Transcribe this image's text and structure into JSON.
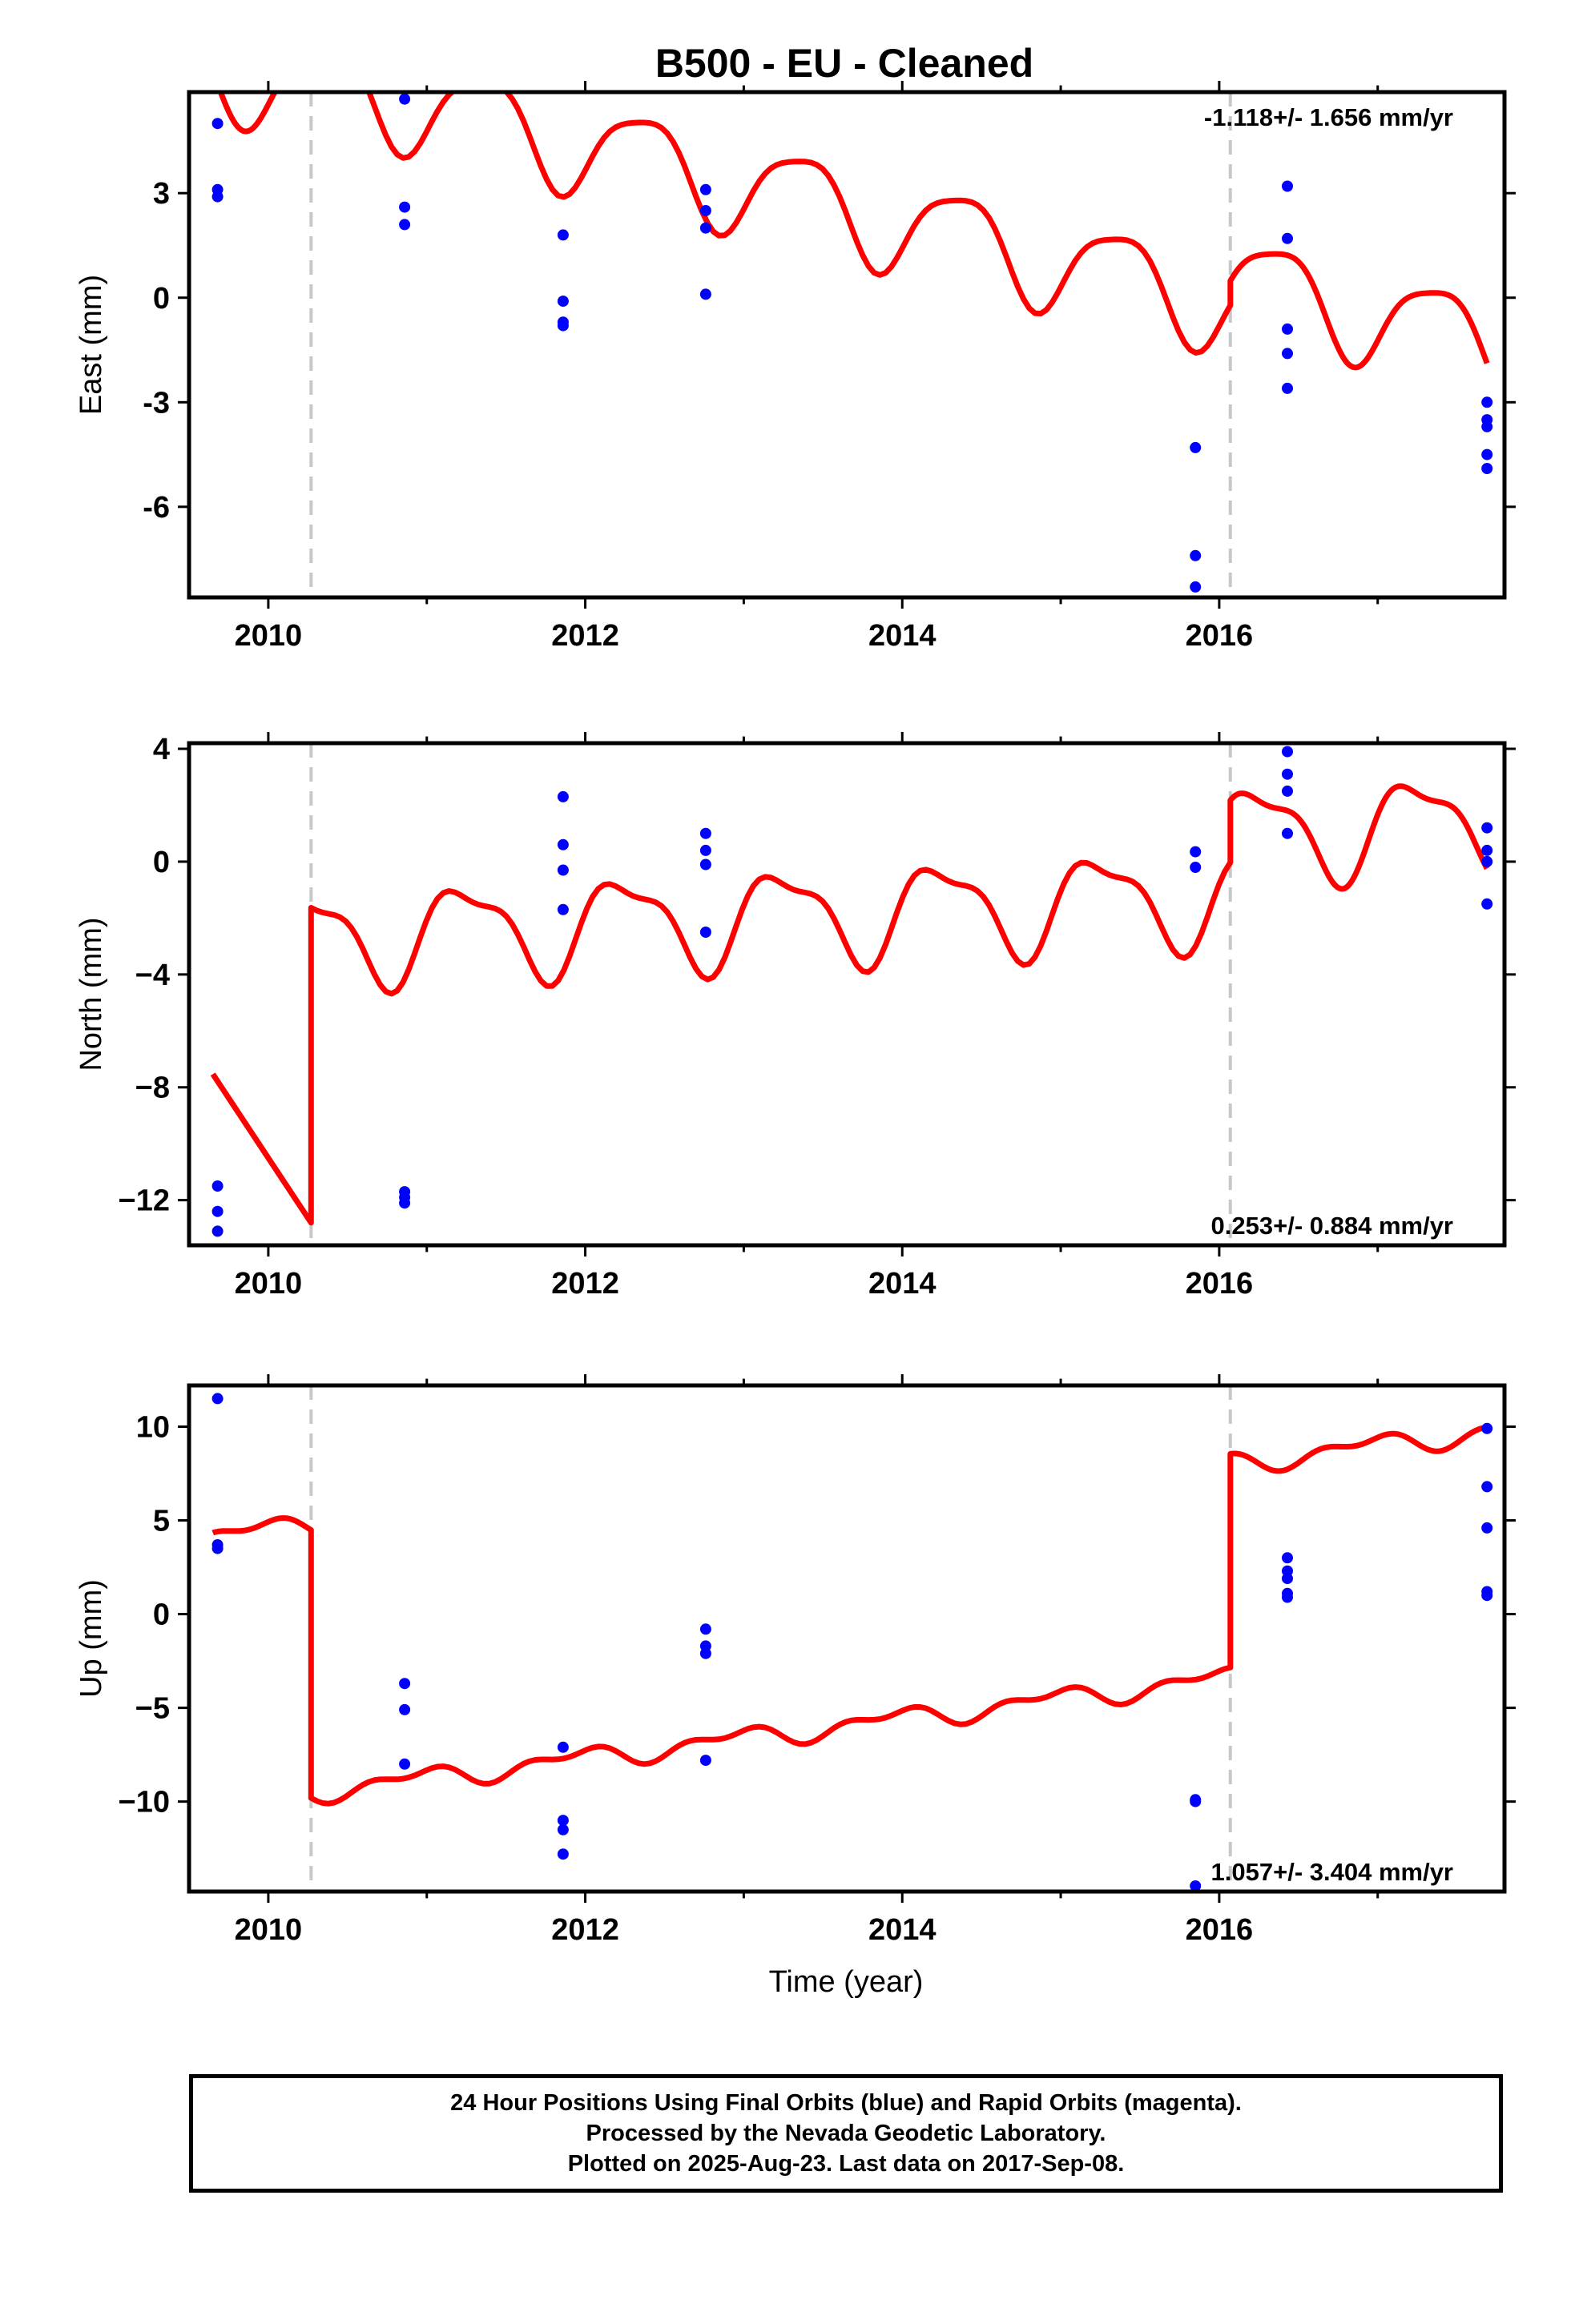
{
  "chart_data": {
    "title": "B500  - EU - Cleaned",
    "type": "scatter",
    "xlabel": "Time (year)",
    "xlim": [
      2009.5,
      2017.8
    ],
    "xticks": [
      2010,
      2012,
      2014,
      2016
    ],
    "equipment_changes": [
      2010.27,
      2016.07
    ],
    "colors": {
      "final_orbits": "#0000ff",
      "rapid_orbits": "#ff00ff",
      "model": "#ff0000",
      "breaks": "#c8c8c8"
    },
    "panels": [
      {
        "name": "east",
        "ylabel": "East (mm)",
        "ylim": [
          -8.6,
          5.9
        ],
        "yticks": [
          "3",
          "0",
          "-3",
          "-6"
        ],
        "yticks_values": [
          3,
          0,
          -3,
          -6
        ],
        "rate_text": "-1.118+/- 1.656 mm/yr",
        "rate_position": "top-right",
        "points": [
          {
            "x": 2009.68,
            "y": 5.0
          },
          {
            "x": 2009.68,
            "y": 3.1
          },
          {
            "x": 2009.68,
            "y": 2.9
          },
          {
            "x": 2010.86,
            "y": 5.7
          },
          {
            "x": 2010.86,
            "y": 2.6
          },
          {
            "x": 2010.86,
            "y": 2.1
          },
          {
            "x": 2011.86,
            "y": 1.8
          },
          {
            "x": 2011.86,
            "y": -0.1
          },
          {
            "x": 2011.86,
            "y": -0.7
          },
          {
            "x": 2011.86,
            "y": -0.8
          },
          {
            "x": 2012.76,
            "y": 3.1
          },
          {
            "x": 2012.76,
            "y": 2.5
          },
          {
            "x": 2012.76,
            "y": 2.0
          },
          {
            "x": 2012.76,
            "y": 0.1
          },
          {
            "x": 2015.85,
            "y": -4.3
          },
          {
            "x": 2015.85,
            "y": -7.4
          },
          {
            "x": 2015.85,
            "y": -8.3
          },
          {
            "x": 2016.43,
            "y": 3.2
          },
          {
            "x": 2016.43,
            "y": 1.7
          },
          {
            "x": 2016.43,
            "y": -0.9
          },
          {
            "x": 2016.43,
            "y": -1.6
          },
          {
            "x": 2016.43,
            "y": -2.6
          },
          {
            "x": 2017.69,
            "y": -3.0
          },
          {
            "x": 2017.69,
            "y": -3.5
          },
          {
            "x": 2017.69,
            "y": -3.7
          },
          {
            "x": 2017.69,
            "y": -4.5
          },
          {
            "x": 2017.69,
            "y": -4.9
          }
        ],
        "model": {
          "trend_mm_per_yr": -1.118,
          "annual_amplitude": 1.35,
          "annual_phase": 5.6,
          "semiannual_amplitude": 0.3,
          "semiannual_phase": 0.5,
          "segments": [
            {
              "start": 2009.65,
              "end": 2010.27,
              "offset": 5.95
            },
            {
              "start": 2010.27,
              "end": 2016.07,
              "offset": 6.3
            },
            {
              "start": 2016.07,
              "end": 2017.69,
              "offset": 7.0
            }
          ]
        }
      },
      {
        "name": "north",
        "ylabel": "North (mm)",
        "ylim": [
          -13.6,
          4.2
        ],
        "yticks": [
          "4",
          "0",
          "−4",
          "−8",
          "−12"
        ],
        "yticks_values": [
          4,
          0,
          -4,
          -8,
          -12
        ],
        "rate_text": "0.253+/- 0.884 mm/yr",
        "rate_position": "bottom-right",
        "points": [
          {
            "x": 2009.68,
            "y": -11.5
          },
          {
            "x": 2009.68,
            "y": -12.4
          },
          {
            "x": 2009.68,
            "y": -13.1
          },
          {
            "x": 2010.86,
            "y": -11.7
          },
          {
            "x": 2010.86,
            "y": -11.9
          },
          {
            "x": 2010.86,
            "y": -12.1
          },
          {
            "x": 2011.86,
            "y": 2.3
          },
          {
            "x": 2011.86,
            "y": 0.6
          },
          {
            "x": 2011.86,
            "y": -0.3
          },
          {
            "x": 2011.86,
            "y": -1.7
          },
          {
            "x": 2012.76,
            "y": 1.0
          },
          {
            "x": 2012.76,
            "y": 0.4
          },
          {
            "x": 2012.76,
            "y": -0.1
          },
          {
            "x": 2012.76,
            "y": -2.5
          },
          {
            "x": 2015.85,
            "y": 0.35
          },
          {
            "x": 2015.85,
            "y": -0.2
          },
          {
            "x": 2016.43,
            "y": 3.9
          },
          {
            "x": 2016.43,
            "y": 3.1
          },
          {
            "x": 2016.43,
            "y": 2.5
          },
          {
            "x": 2016.43,
            "y": 1.0
          },
          {
            "x": 2017.69,
            "y": 1.2
          },
          {
            "x": 2017.69,
            "y": 0.4
          },
          {
            "x": 2017.69,
            "y": 0.0
          },
          {
            "x": 2017.69,
            "y": -1.5
          }
        ],
        "model": {
          "trend_mm_per_yr": 0.253,
          "annual_amplitude": 1.6,
          "annual_phase": 0.0,
          "semiannual_amplitude": 0.55,
          "semiannual_phase": 1.0,
          "segments": [
            {
              "start": 2009.65,
              "end": 2010.27,
              "offset": -12.8,
              "slope_override": -8.5,
              "amp_scale": 0.0
            },
            {
              "start": 2010.27,
              "end": 2016.07,
              "offset": -2.7
            },
            {
              "start": 2016.07,
              "end": 2017.69,
              "offset": -0.5
            }
          ]
        }
      },
      {
        "name": "up",
        "ylabel": "Up (mm)",
        "ylim": [
          -14.8,
          12.2
        ],
        "yticks": [
          "10",
          "5",
          "0",
          "−5",
          "−10"
        ],
        "yticks_values": [
          10,
          5,
          0,
          -5,
          -10
        ],
        "rate_text": "1.057+/- 3.404 mm/yr",
        "rate_position": "bottom-right",
        "points": [
          {
            "x": 2009.68,
            "y": 11.5
          },
          {
            "x": 2009.68,
            "y": 3.7
          },
          {
            "x": 2009.68,
            "y": 3.5
          },
          {
            "x": 2010.86,
            "y": -3.7
          },
          {
            "x": 2010.86,
            "y": -5.1
          },
          {
            "x": 2010.86,
            "y": -8.0
          },
          {
            "x": 2011.86,
            "y": -7.1
          },
          {
            "x": 2011.86,
            "y": -11.0
          },
          {
            "x": 2011.86,
            "y": -11.5
          },
          {
            "x": 2011.86,
            "y": -12.8
          },
          {
            "x": 2012.76,
            "y": -0.8
          },
          {
            "x": 2012.76,
            "y": -1.7
          },
          {
            "x": 2012.76,
            "y": -2.1
          },
          {
            "x": 2012.76,
            "y": -7.8
          },
          {
            "x": 2015.85,
            "y": -9.9
          },
          {
            "x": 2015.85,
            "y": -10.0
          },
          {
            "x": 2015.85,
            "y": -14.5
          },
          {
            "x": 2016.43,
            "y": 3.0
          },
          {
            "x": 2016.43,
            "y": 2.3
          },
          {
            "x": 2016.43,
            "y": 1.9
          },
          {
            "x": 2016.43,
            "y": 1.1
          },
          {
            "x": 2016.43,
            "y": 0.9
          },
          {
            "x": 2017.69,
            "y": 9.9
          },
          {
            "x": 2017.69,
            "y": 6.8
          },
          {
            "x": 2017.69,
            "y": 4.6
          },
          {
            "x": 2017.69,
            "y": 1.2
          },
          {
            "x": 2017.69,
            "y": 1.0
          }
        ],
        "model": {
          "trend_mm_per_yr": 1.057,
          "annual_amplitude": 0.45,
          "annual_phase": 2.0,
          "semiannual_amplitude": 0.3,
          "semiannual_phase": 0.0,
          "segments": [
            {
              "start": 2009.65,
              "end": 2010.27,
              "offset": 4.8
            },
            {
              "start": 2010.27,
              "end": 2016.07,
              "offset": -9.5
            },
            {
              "start": 2016.07,
              "end": 2017.69,
              "offset": 1.9
            }
          ]
        }
      }
    ]
  },
  "footer": {
    "line1": "24 Hour Positions Using Final Orbits (blue) and Rapid Orbits (magenta).",
    "line2": "Processed by the Nevada Geodetic Laboratory.",
    "line3": "Plotted on 2025-Aug-23. Last data on 2017-Sep-08."
  }
}
